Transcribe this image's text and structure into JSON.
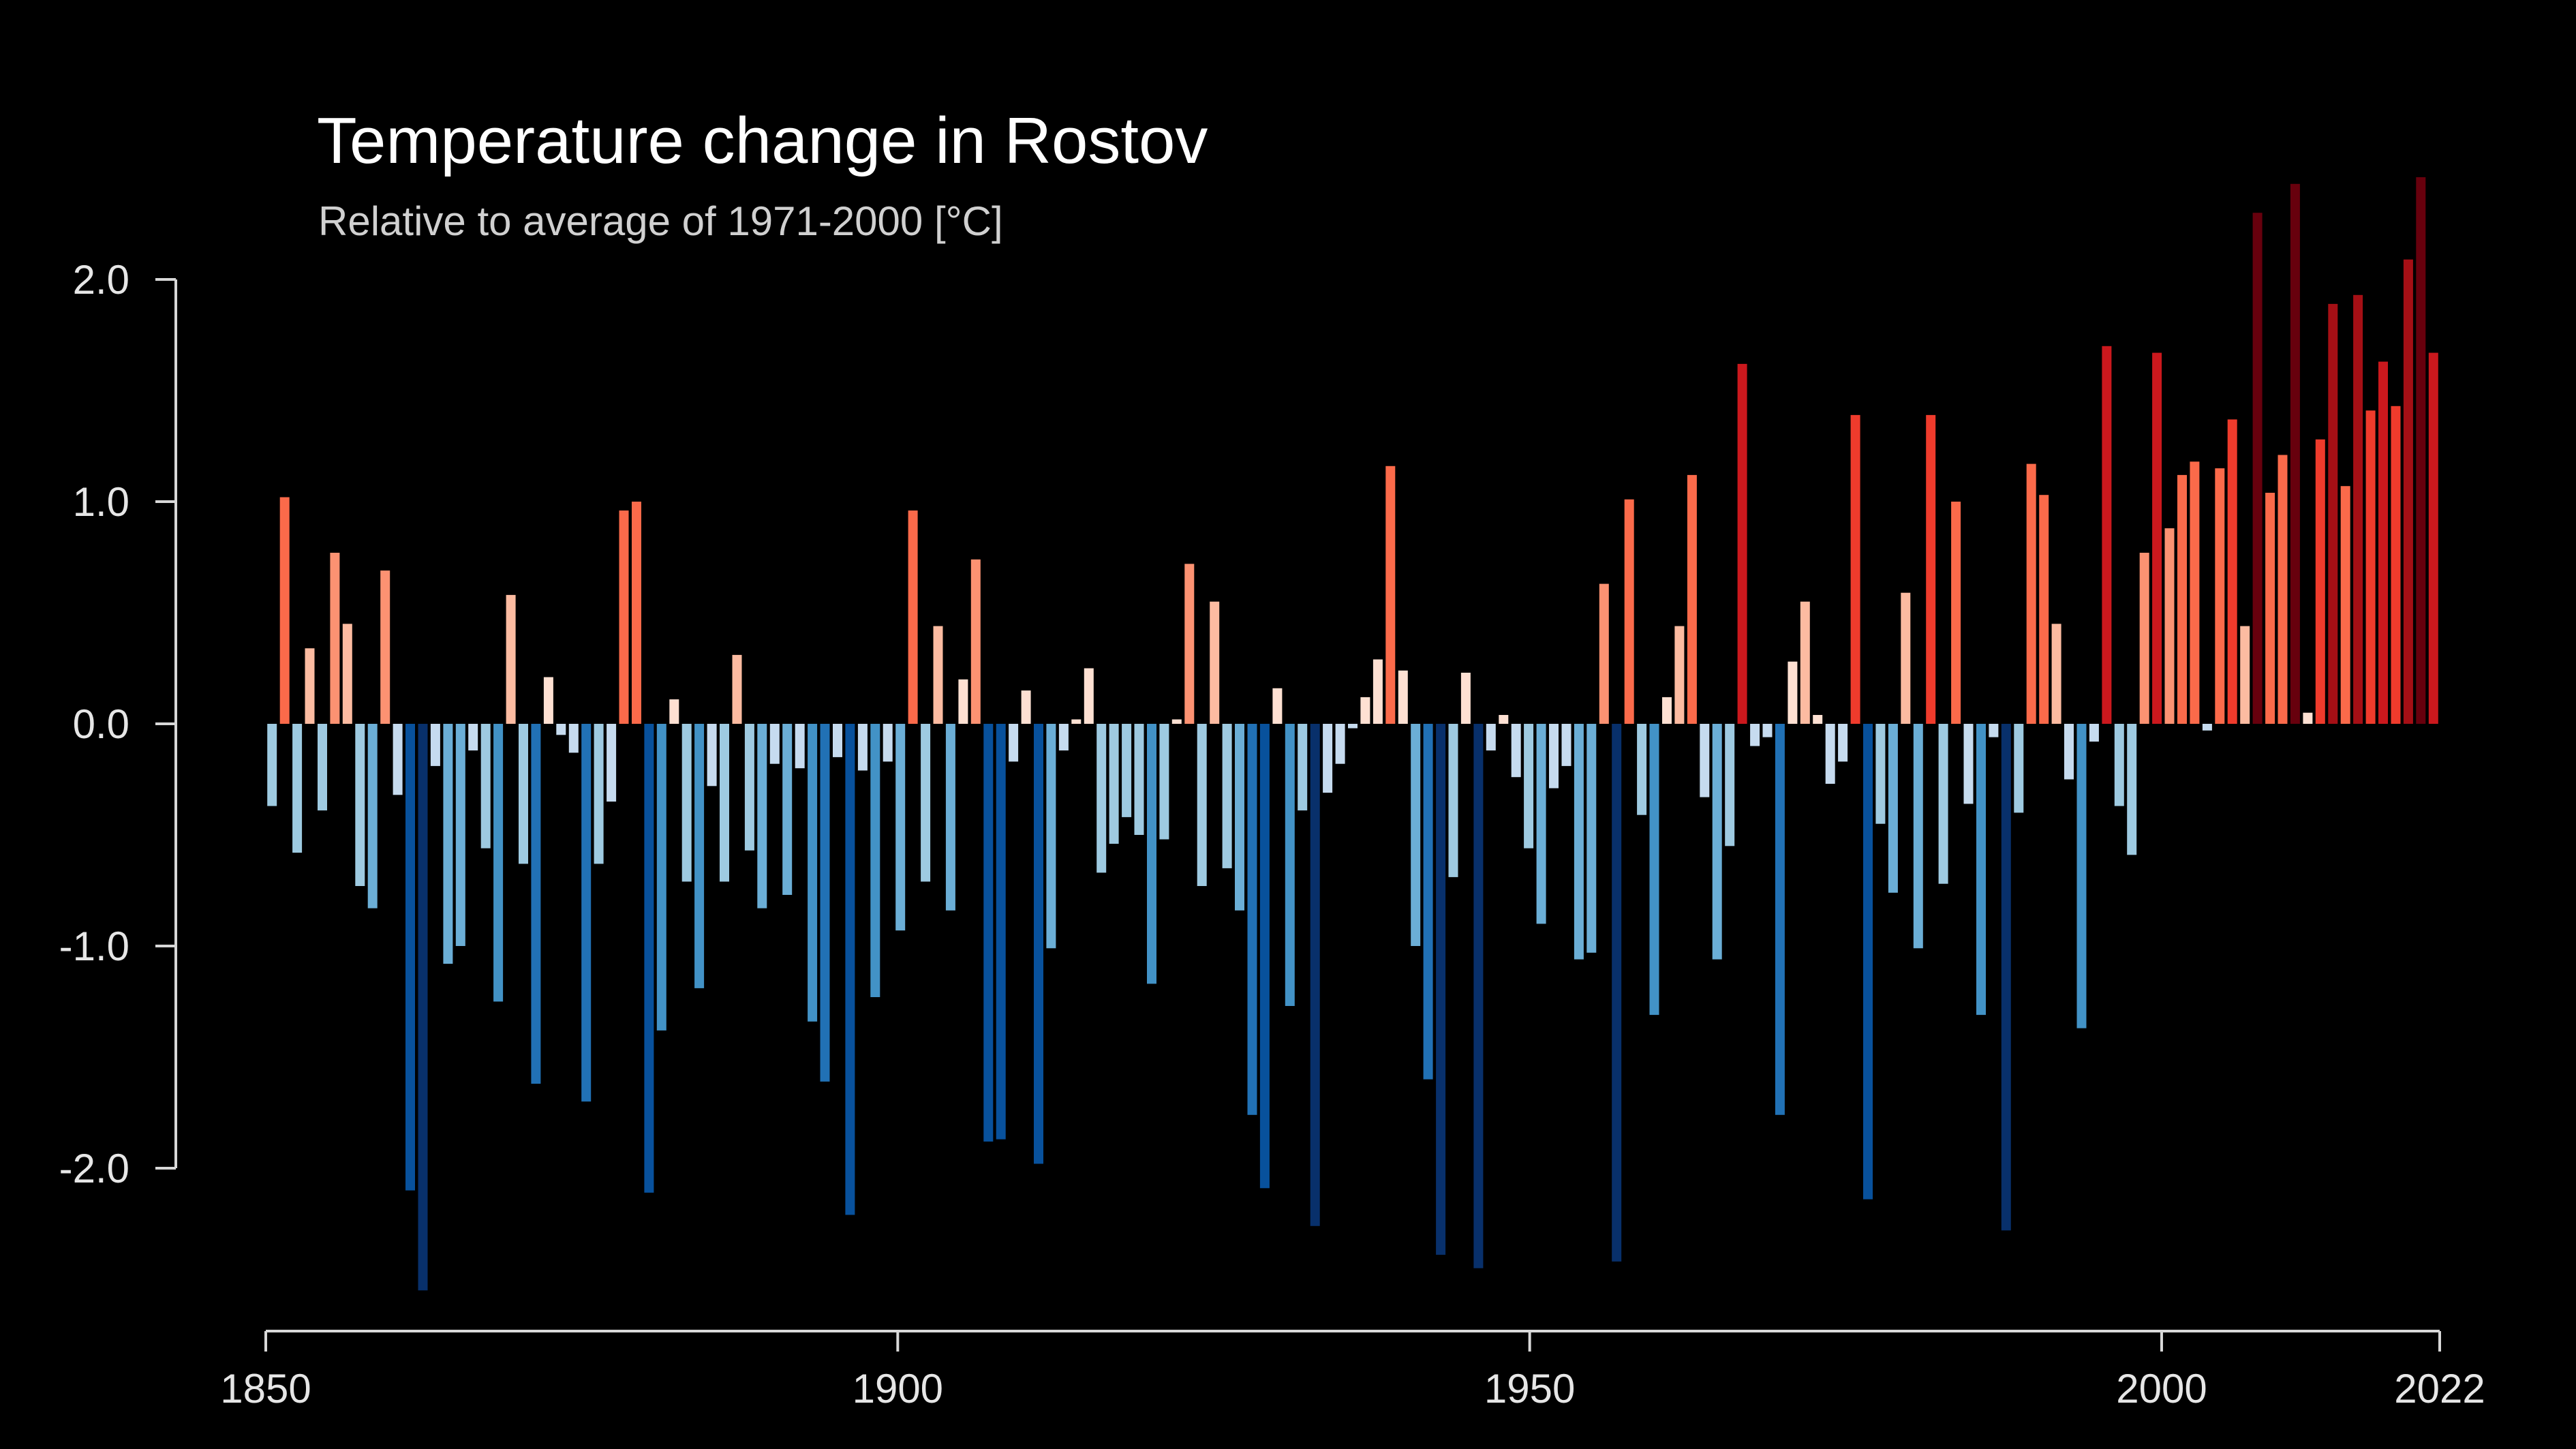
{
  "chart_data": {
    "type": "bar",
    "title": "Temperature change in Rostov",
    "subtitle": "Relative to average of 1971-2000  [°C]",
    "xlabel": "",
    "ylabel": "",
    "x_start": 1850,
    "x_end": 2022,
    "x_ticks": [
      {
        "value": 1850,
        "label": "1850"
      },
      {
        "value": 1900,
        "label": "1900"
      },
      {
        "value": 1950,
        "label": "1950"
      },
      {
        "value": 2000,
        "label": "2000"
      },
      {
        "value": 2022,
        "label": "2022"
      }
    ],
    "y_ticks": [
      {
        "value": 2,
        "label": "2.0"
      },
      {
        "value": 1,
        "label": "1.0"
      },
      {
        "value": 0,
        "label": "0.0"
      },
      {
        "value": -1,
        "label": "-1.0"
      },
      {
        "value": -2,
        "label": "-2.0"
      }
    ],
    "ylim": [
      -2.6,
      2.5
    ],
    "grid": false,
    "legend": "none",
    "color_scale": {
      "negative": [
        "#c6dbef",
        "#9ecae1",
        "#6baed6",
        "#4292c6",
        "#2171b5",
        "#08519c",
        "#08306b"
      ],
      "positive": [
        "#fee0d2",
        "#fcbba1",
        "#fc9272",
        "#fb6a4a",
        "#ef3b2c",
        "#cb181d",
        "#a50f15",
        "#67000d"
      ]
    },
    "values": [
      -0.37,
      1.02,
      -0.58,
      0.34,
      -0.39,
      0.77,
      0.45,
      -0.73,
      -0.83,
      0.69,
      -0.32,
      -2.1,
      -2.55,
      -0.19,
      -1.08,
      -1.0,
      -0.12,
      -0.56,
      -1.25,
      0.58,
      -0.63,
      -1.62,
      0.21,
      -0.05,
      -0.13,
      -1.7,
      -0.63,
      -0.35,
      0.96,
      1.0,
      -2.11,
      -1.38,
      0.11,
      -0.71,
      -1.19,
      -0.28,
      -0.71,
      0.31,
      -0.57,
      -0.83,
      -0.18,
      -0.77,
      -0.2,
      -1.34,
      -1.61,
      -0.15,
      -2.21,
      -0.21,
      -1.23,
      -0.17,
      -0.93,
      0.96,
      -0.71,
      0.44,
      -0.84,
      0.2,
      0.74,
      -1.88,
      -1.87,
      -0.17,
      0.15,
      -1.98,
      -1.01,
      -0.12,
      0.02,
      0.25,
      -0.67,
      -0.54,
      -0.42,
      -0.5,
      -1.17,
      -0.52,
      0.02,
      0.72,
      -0.73,
      0.55,
      -0.65,
      -0.84,
      -1.76,
      -2.09,
      0.16,
      -1.27,
      -0.39,
      -2.26,
      -0.31,
      -0.18,
      -0.02,
      0.12,
      0.29,
      1.16,
      0.24,
      -1.0,
      -1.6,
      -2.39,
      -0.69,
      0.23,
      -2.45,
      -0.12,
      0.04,
      -0.24,
      -0.56,
      -0.9,
      -0.29,
      -0.19,
      -1.06,
      -1.03,
      0.63,
      -2.42,
      1.01,
      -0.41,
      -1.31,
      0.12,
      0.44,
      1.12,
      -0.33,
      -1.06,
      -0.55,
      1.62,
      -0.1,
      -0.06,
      -1.76,
      0.28,
      0.55,
      0.04,
      -0.27,
      -0.17,
      1.39,
      -2.14,
      -0.45,
      -0.76,
      0.59,
      -1.01,
      1.39,
      -0.72,
      1.0,
      -0.36,
      -1.31,
      -0.06,
      -2.28,
      -0.4,
      1.17,
      1.03,
      0.45,
      -0.25,
      -1.37,
      -0.08,
      1.7,
      -0.37,
      -0.59,
      0.77,
      1.67,
      0.88,
      1.12,
      1.18,
      -0.03,
      1.15,
      1.37,
      0.44,
      2.3,
      1.04,
      1.21,
      2.43,
      0.05,
      1.28,
      1.89,
      1.07,
      1.93,
      1.41,
      1.63,
      1.43,
      2.09,
      2.46,
      1.67
    ]
  }
}
